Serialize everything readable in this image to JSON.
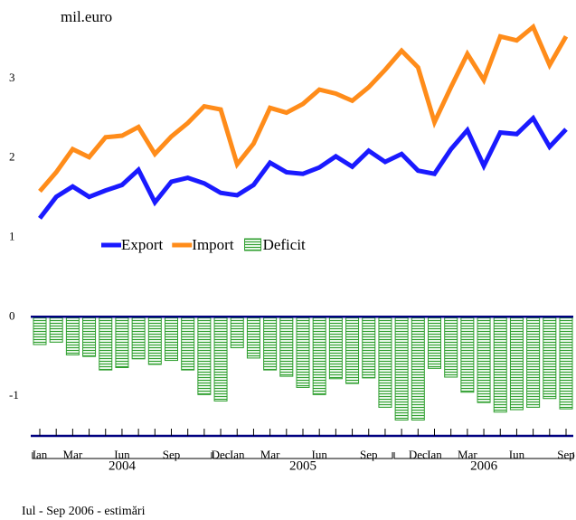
{
  "chart_data": {
    "type": "line_bar",
    "y_axis_label": "mil.euro",
    "footnote": "Iul - Sep 2006 - estimări",
    "categories": [
      "Ian",
      null,
      "Mar",
      null,
      null,
      "Iun",
      null,
      null,
      "Sep",
      null,
      null,
      "Dec",
      "Ian",
      null,
      "Mar",
      null,
      null,
      "Iun",
      null,
      null,
      "Sep",
      null,
      null,
      "Dec",
      "Ian",
      null,
      "Mar",
      null,
      null,
      "Iun",
      null,
      null,
      "Sep"
    ],
    "years": [
      "2004",
      "2005",
      "2006"
    ],
    "series": [
      {
        "name": "Export",
        "kind": "line",
        "color": "#1a1aff",
        "values": [
          1.24,
          1.51,
          1.64,
          1.51,
          1.59,
          1.66,
          1.85,
          1.44,
          1.7,
          1.75,
          1.68,
          1.56,
          1.53,
          1.66,
          1.94,
          1.82,
          1.8,
          1.88,
          2.02,
          1.89,
          2.09,
          1.95,
          2.05,
          1.84,
          1.8,
          2.11,
          2.35,
          1.9,
          2.32,
          2.3,
          2.5,
          2.14,
          2.36
        ]
      },
      {
        "name": "Import",
        "kind": "line",
        "color": "#ff8c1a",
        "values": [
          1.58,
          1.82,
          2.11,
          2.01,
          2.26,
          2.28,
          2.39,
          2.05,
          2.27,
          2.44,
          2.65,
          2.61,
          1.92,
          2.18,
          2.63,
          2.57,
          2.68,
          2.86,
          2.81,
          2.72,
          2.89,
          3.11,
          3.35,
          3.14,
          2.45,
          2.89,
          3.31,
          2.98,
          3.53,
          3.48,
          3.65,
          3.17,
          3.53
        ]
      },
      {
        "name": "Deficit",
        "kind": "bar",
        "color": "#2e9e2e",
        "values": [
          -0.35,
          -0.32,
          -0.48,
          -0.5,
          -0.67,
          -0.64,
          -0.53,
          -0.6,
          -0.55,
          -0.67,
          -0.98,
          -1.06,
          -0.39,
          -0.52,
          -0.67,
          -0.75,
          -0.89,
          -0.98,
          -0.78,
          -0.84,
          -0.77,
          -1.14,
          -1.3,
          -1.3,
          -0.65,
          -0.76,
          -0.95,
          -1.08,
          -1.2,
          -1.17,
          -1.14,
          -1.03,
          -1.16
        ]
      }
    ],
    "ylim": [
      -1.5,
      4
    ],
    "yticks": [
      -1,
      0,
      1,
      2,
      3
    ],
    "grid": false
  }
}
